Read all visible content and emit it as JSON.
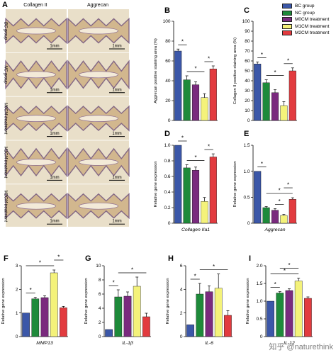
{
  "colors": {
    "BC": "#3b57a8",
    "NC": "#1e8a3a",
    "M0": "#7a2a7e",
    "M1": "#f4f27a",
    "M2": "#e23b3f",
    "photo_bg": "#e9dfc9",
    "tissue": "#c9a97a"
  },
  "panel_a": {
    "letter": "A",
    "col_headers": [
      "Collagen II",
      "Aggrecan"
    ],
    "row_labels": [
      "BC group",
      "NC group",
      "M0CM treatment",
      "M1CM treatment",
      "M2CM treatment"
    ],
    "scale_label": "1mm"
  },
  "legend": {
    "items": [
      "BC group",
      "NC group",
      "M0CM treatment",
      "M1CM treatment",
      "M2CM treatment"
    ]
  },
  "chart_data": [
    {
      "id": "B",
      "letter": "B",
      "type": "bar",
      "categories": [
        "BC group",
        "NC group",
        "M0CM treatment",
        "M1CM treatment",
        "M2CM treatment"
      ],
      "values": [
        70,
        41,
        36,
        23,
        52
      ],
      "errors": [
        2,
        4,
        3,
        4,
        3
      ],
      "ylabel": "Aggrecan positive staining area (%)",
      "xlabel": "",
      "ylim": [
        0,
        100
      ],
      "yticks": [
        "0",
        "20",
        "40",
        "60",
        "80",
        "100"
      ],
      "sig": [
        "*",
        "*",
        "*"
      ]
    },
    {
      "id": "C",
      "letter": "C",
      "type": "bar",
      "categories": [
        "BC group",
        "NC group",
        "M0CM treatment",
        "M1CM treatment",
        "M2CM treatment"
      ],
      "values": [
        57,
        38,
        28,
        15,
        50
      ],
      "errors": [
        2,
        3,
        3,
        4,
        3
      ],
      "ylabel": "Collagen II positive staining area (%)",
      "xlabel": "",
      "ylim": [
        0,
        100
      ],
      "yticks": [
        "0",
        "10",
        "20",
        "30",
        "40",
        "50",
        "60",
        "70",
        "80",
        "90",
        "100"
      ],
      "sig": [
        "*",
        "*",
        "*"
      ]
    },
    {
      "id": "D",
      "letter": "D",
      "type": "bar",
      "categories": [
        "BC group",
        "NC group",
        "M0CM treatment",
        "M1CM treatment",
        "M2CM treatment"
      ],
      "values": [
        1.0,
        0.71,
        0.68,
        0.28,
        0.85
      ],
      "errors": [
        0.0,
        0.04,
        0.04,
        0.05,
        0.04
      ],
      "ylabel": "Relative gene expression",
      "xlabel": "Collagen IIa1",
      "ylim": [
        0,
        1.0
      ],
      "yticks": [
        "0",
        "0.2",
        "0.4",
        "0.6",
        "0.8",
        "1.0"
      ],
      "sig": [
        "*",
        "*",
        "*"
      ]
    },
    {
      "id": "E",
      "letter": "E",
      "type": "bar",
      "categories": [
        "BC group",
        "NC group",
        "M0CM treatment",
        "M1CM treatment",
        "M2CM treatment"
      ],
      "values": [
        1.0,
        0.3,
        0.25,
        0.15,
        0.46
      ],
      "errors": [
        0.0,
        0.02,
        0.03,
        0.02,
        0.03
      ],
      "ylabel": "Relative gene expression",
      "xlabel": "Aggrecan",
      "ylim": [
        0,
        1.5
      ],
      "yticks": [
        "0",
        "0.5",
        "1.0",
        "1.5"
      ],
      "sig": [
        "*",
        "*",
        "*",
        "*"
      ]
    },
    {
      "id": "F",
      "letter": "F",
      "type": "bar",
      "categories": [
        "BC group",
        "NC group",
        "M0CM treatment",
        "M1CM treatment",
        "M2CM treatment"
      ],
      "values": [
        1.0,
        1.6,
        1.65,
        2.7,
        1.22
      ],
      "errors": [
        0.0,
        0.06,
        0.08,
        0.12,
        0.06
      ],
      "ylabel": "Relative gene expression",
      "xlabel": "MMP13",
      "ylim": [
        0,
        3
      ],
      "yticks": [
        "0",
        "1",
        "2",
        "3"
      ],
      "sig": [
        "*",
        "*",
        "*"
      ]
    },
    {
      "id": "G",
      "letter": "G",
      "type": "bar",
      "categories": [
        "BC group",
        "NC group",
        "M0CM treatment",
        "M1CM treatment",
        "M2CM treatment"
      ],
      "values": [
        1.0,
        5.6,
        5.7,
        7.1,
        2.8
      ],
      "errors": [
        0.0,
        1.0,
        0.6,
        1.3,
        0.5
      ],
      "ylabel": "Relative gene expression",
      "xlabel": "IL-1β",
      "ylim": [
        0,
        10
      ],
      "yticks": [
        "0",
        "2",
        "4",
        "6",
        "8",
        "10"
      ],
      "sig": [
        "*",
        "*"
      ]
    },
    {
      "id": "H",
      "letter": "H",
      "type": "bar",
      "categories": [
        "BC group",
        "NC group",
        "M0CM treatment",
        "M1CM treatment",
        "M2CM treatment"
      ],
      "values": [
        1.0,
        3.6,
        3.8,
        4.1,
        1.8
      ],
      "errors": [
        0.0,
        0.9,
        0.5,
        1.2,
        0.4
      ],
      "ylabel": "Relative gene expression",
      "xlabel": "IL-6",
      "ylim": [
        0,
        6
      ],
      "yticks": [
        "0",
        "2",
        "4",
        "6"
      ],
      "sig": [
        "*",
        "*"
      ]
    },
    {
      "id": "I",
      "letter": "I",
      "type": "bar",
      "categories": [
        "BC group",
        "NC group",
        "M0CM treatment",
        "M1CM treatment",
        "M2CM treatment"
      ],
      "values": [
        1.0,
        1.23,
        1.3,
        1.57,
        1.08
      ],
      "errors": [
        0.0,
        0.04,
        0.05,
        0.08,
        0.04
      ],
      "ylabel": "Relative gene expression",
      "xlabel": "IL-12",
      "ylim": [
        0,
        2.0
      ],
      "yticks": [
        "0",
        "0.5",
        "1.0",
        "1.5",
        "2.0"
      ],
      "sig": [
        "*",
        "*",
        "*"
      ]
    }
  ],
  "watermark": "知乎 @naturethink"
}
